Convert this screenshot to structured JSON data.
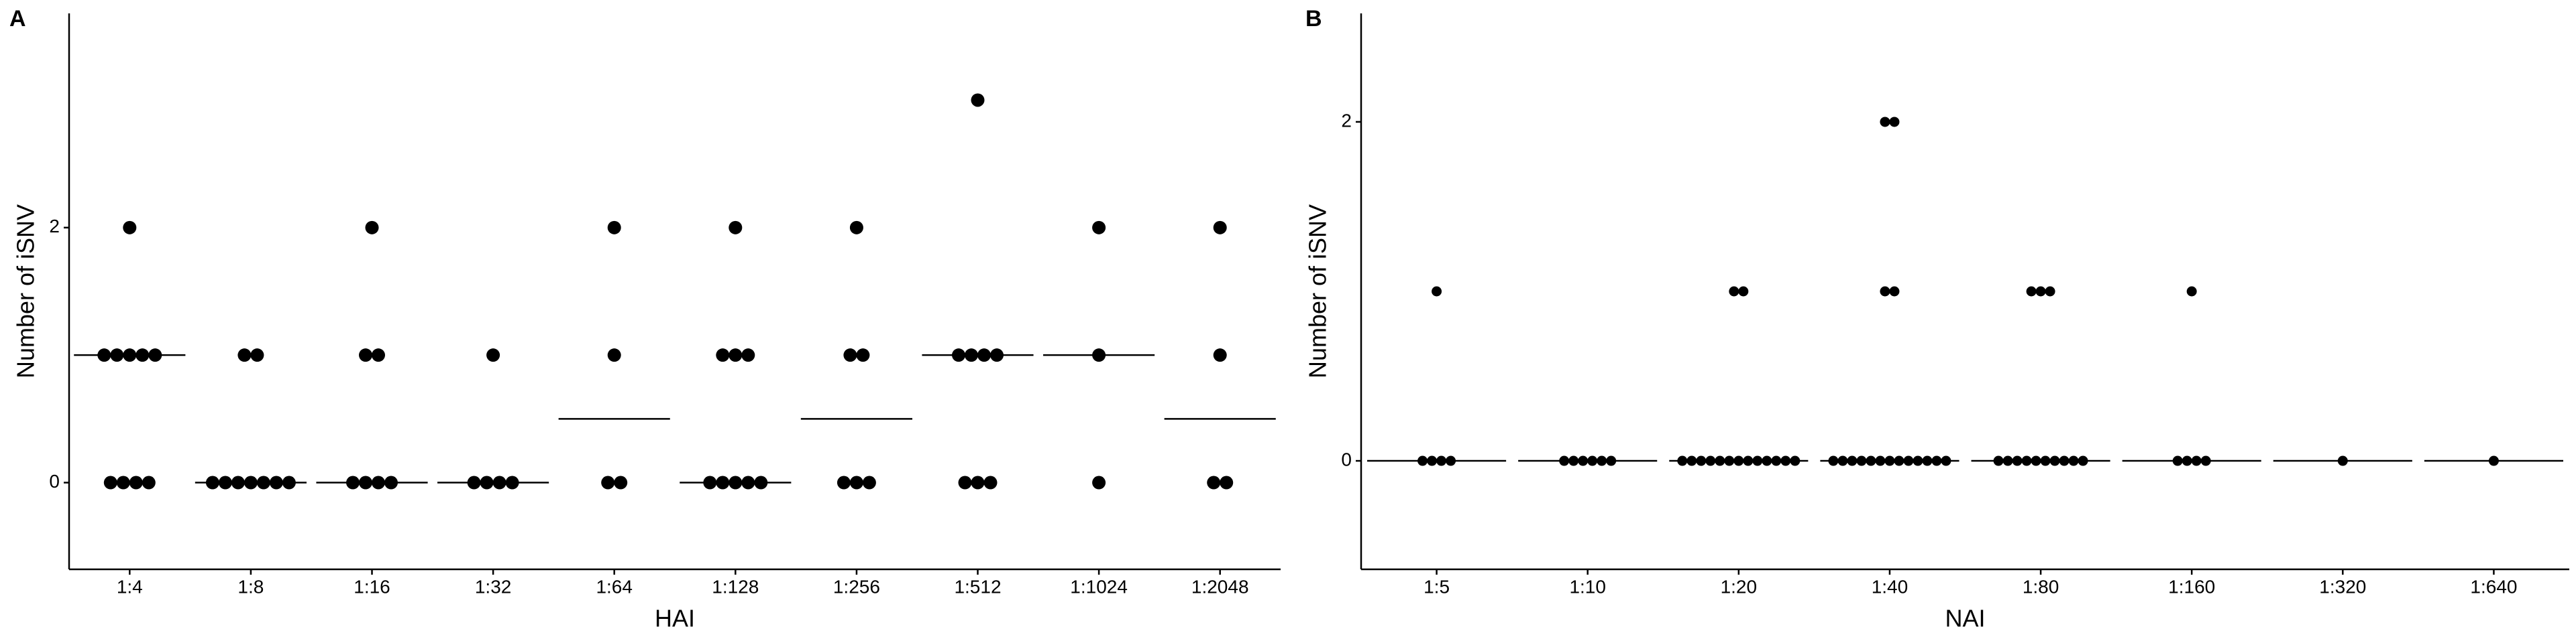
{
  "chart_data": [
    {
      "type": "dotplot",
      "label": "A",
      "xlabel": "HAI",
      "ylabel": "Number of iSNV",
      "color": "#000000",
      "categories": [
        "1:4",
        "1:8",
        "1:16",
        "1:32",
        "1:64",
        "1:128",
        "1:256",
        "1:512",
        "1:1024",
        "1:2048"
      ],
      "values": [
        [
          2,
          1,
          1,
          1,
          1,
          1,
          0,
          0,
          0,
          0
        ],
        [
          1,
          1,
          0,
          0,
          0,
          0,
          0,
          0,
          0
        ],
        [
          2,
          1,
          1,
          0,
          0,
          0,
          0
        ],
        [
          1,
          0,
          0,
          0,
          0
        ],
        [
          2,
          1,
          0,
          0
        ],
        [
          2,
          1,
          1,
          1,
          0,
          0,
          0,
          0,
          0
        ],
        [
          2,
          1,
          1,
          0,
          0,
          0
        ],
        [
          3,
          1,
          1,
          1,
          1,
          0,
          0,
          0
        ],
        [
          2,
          1,
          0
        ],
        [
          2,
          1,
          0,
          0
        ]
      ],
      "medians": [
        1,
        0,
        0,
        0,
        0.5,
        0,
        0.5,
        1,
        1,
        0.5
      ],
      "ylim": [
        -0.68,
        3.68
      ],
      "yticks": [
        0,
        2
      ]
    },
    {
      "type": "dotplot",
      "label": "B",
      "xlabel": "NAI",
      "ylabel": "Number of iSNV",
      "color": "#000000",
      "categories": [
        "1:5",
        "1:10",
        "1:20",
        "1:40",
        "1:80",
        "1:160",
        "1:320",
        "1:640"
      ],
      "values": [
        [
          1,
          0,
          0,
          0,
          0
        ],
        [
          0,
          0,
          0,
          0,
          0,
          0
        ],
        [
          1,
          1,
          0,
          0,
          0,
          0,
          0,
          0,
          0,
          0,
          0,
          0,
          0,
          0,
          0
        ],
        [
          2,
          2,
          1,
          1,
          0,
          0,
          0,
          0,
          0,
          0,
          0,
          0,
          0,
          0,
          0,
          0,
          0
        ],
        [
          1,
          1,
          1,
          0,
          0,
          0,
          0,
          0,
          0,
          0,
          0,
          0,
          0
        ],
        [
          1,
          0,
          0,
          0,
          0
        ],
        [
          0
        ],
        [
          0
        ]
      ],
      "medians": [
        0,
        0,
        0,
        0,
        0,
        0,
        0,
        0
      ],
      "ylim": [
        -0.64,
        2.64
      ],
      "yticks": [
        0,
        2
      ]
    }
  ]
}
